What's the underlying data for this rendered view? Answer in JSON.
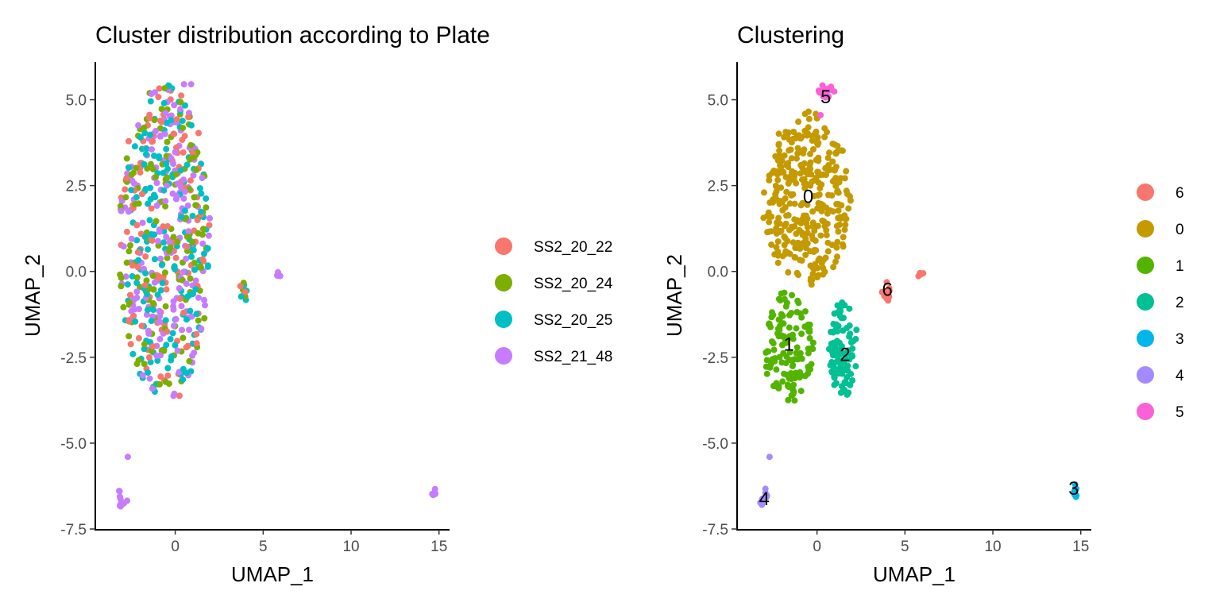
{
  "chart_data": [
    {
      "type": "scatter",
      "title": "Cluster distribution according to Plate",
      "xlabel": "UMAP_1",
      "ylabel": "UMAP_2",
      "xlim": [
        -4.5,
        15.6
      ],
      "ylim": [
        -7.5,
        6.1
      ],
      "x_ticks": [
        {
          "v": 0,
          "label": "0"
        },
        {
          "v": 5,
          "label": "5"
        },
        {
          "v": 10,
          "label": "10"
        },
        {
          "v": 15,
          "label": "15"
        }
      ],
      "y_ticks": [
        {
          "v": 5,
          "label": "5.0"
        },
        {
          "v": 2.5,
          "label": "2.5"
        },
        {
          "v": 0,
          "label": "0.0"
        },
        {
          "v": -2.5,
          "label": "-2.5"
        },
        {
          "v": -5,
          "label": "-5.0"
        },
        {
          "v": -7.5,
          "label": "-7.5"
        }
      ],
      "legend_position": "right",
      "series": [
        {
          "name": "SS2_20_22",
          "color": "#F8766D"
        },
        {
          "name": "SS2_20_24",
          "color": "#7CAE00"
        },
        {
          "name": "SS2_20_25",
          "color": "#00BFC4"
        },
        {
          "name": "SS2_21_48",
          "color": "#C77CFF"
        }
      ],
      "groups": [
        {
          "type": "cloud",
          "cx": -0.6,
          "cy": 0.8,
          "rx": 2.6,
          "ry": 4.7,
          "n": 600,
          "mix": [
            0.22,
            0.22,
            0.26,
            0.3
          ]
        },
        {
          "type": "cloud",
          "cx": 3.9,
          "cy": -0.6,
          "rx": 0.25,
          "ry": 0.3,
          "n": 10,
          "mix": [
            0.3,
            0.4,
            0.3,
            0
          ]
        },
        {
          "type": "cloud",
          "cx": 5.9,
          "cy": -0.1,
          "rx": 0.15,
          "ry": 0.12,
          "n": 5,
          "mix": [
            0,
            0,
            0,
            1
          ]
        },
        {
          "type": "cloud",
          "cx": -3.0,
          "cy": -6.6,
          "rx": 0.3,
          "ry": 0.3,
          "n": 10,
          "mix": [
            0,
            0,
            0,
            1
          ]
        },
        {
          "type": "cloud",
          "cx": 14.7,
          "cy": -6.35,
          "rx": 0.1,
          "ry": 0.25,
          "n": 6,
          "mix": [
            0,
            0,
            0,
            1
          ]
        }
      ],
      "fixed_points": [
        {
          "x": -2.7,
          "y": -5.4,
          "series": 3
        },
        {
          "x": 0.5,
          "y": 5.45,
          "series": 3
        },
        {
          "x": 0.9,
          "y": 5.45,
          "series": 3
        }
      ]
    },
    {
      "type": "scatter",
      "title": "Clustering",
      "xlabel": "UMAP_1",
      "ylabel": "UMAP_2",
      "xlim": [
        -4.5,
        15.6
      ],
      "ylim": [
        -7.5,
        6.1
      ],
      "x_ticks": [
        {
          "v": 0,
          "label": "0"
        },
        {
          "v": 5,
          "label": "5"
        },
        {
          "v": 10,
          "label": "10"
        },
        {
          "v": 15,
          "label": "15"
        }
      ],
      "y_ticks": [
        {
          "v": 5,
          "label": "5.0"
        },
        {
          "v": 2.5,
          "label": "2.5"
        },
        {
          "v": 0,
          "label": "0.0"
        },
        {
          "v": -2.5,
          "label": "-2.5"
        },
        {
          "v": -5,
          "label": "-5.0"
        },
        {
          "v": -7.5,
          "label": "-7.5"
        }
      ],
      "legend_position": "right",
      "series": [
        {
          "name": "6",
          "color": "#F8766D"
        },
        {
          "name": "0",
          "color": "#C49A00"
        },
        {
          "name": "1",
          "color": "#53B400"
        },
        {
          "name": "2",
          "color": "#00C094"
        },
        {
          "name": "3",
          "color": "#00B6EB"
        },
        {
          "name": "4",
          "color": "#A58AFF"
        },
        {
          "name": "5",
          "color": "#FB61D7"
        }
      ],
      "cluster_labels": [
        {
          "text": "0",
          "x": -0.5,
          "y": 2.2
        },
        {
          "text": "1",
          "x": -1.6,
          "y": -2.1
        },
        {
          "text": "2",
          "x": 1.6,
          "y": -2.4
        },
        {
          "text": "3",
          "x": 14.6,
          "y": -6.3
        },
        {
          "text": "4",
          "x": -3.0,
          "y": -6.6
        },
        {
          "text": "5",
          "x": 0.5,
          "y": 5.1
        },
        {
          "text": "6",
          "x": 4.0,
          "y": -0.5
        }
      ],
      "groups": [
        {
          "type": "cloud",
          "cx": -0.6,
          "cy": 2.1,
          "rx": 2.5,
          "ry": 2.5,
          "n": 340,
          "series": 1
        },
        {
          "type": "cloud",
          "cx": -1.6,
          "cy": -2.2,
          "rx": 1.4,
          "ry": 1.6,
          "n": 130,
          "series": 2
        },
        {
          "type": "cloud",
          "cx": 1.5,
          "cy": -2.3,
          "rx": 0.8,
          "ry": 1.4,
          "n": 95,
          "series": 3
        },
        {
          "type": "cloud",
          "cx": 14.7,
          "cy": -6.35,
          "rx": 0.1,
          "ry": 0.25,
          "n": 6,
          "series": 4
        },
        {
          "type": "cloud",
          "cx": -3.0,
          "cy": -6.6,
          "rx": 0.3,
          "ry": 0.3,
          "n": 10,
          "series": 5
        },
        {
          "type": "cloud",
          "cx": 0.5,
          "cy": 5.25,
          "rx": 0.5,
          "ry": 0.2,
          "n": 14,
          "series": 6
        },
        {
          "type": "cloud",
          "cx": 3.9,
          "cy": -0.6,
          "rx": 0.25,
          "ry": 0.3,
          "n": 10,
          "series": 0
        },
        {
          "type": "cloud",
          "cx": 5.9,
          "cy": -0.1,
          "rx": 0.15,
          "ry": 0.12,
          "n": 5,
          "series": 0
        }
      ],
      "fixed_points": [
        {
          "x": -2.7,
          "y": -5.4,
          "series": 5
        },
        {
          "x": 0.2,
          "y": 4.55,
          "series": 6
        }
      ]
    }
  ]
}
